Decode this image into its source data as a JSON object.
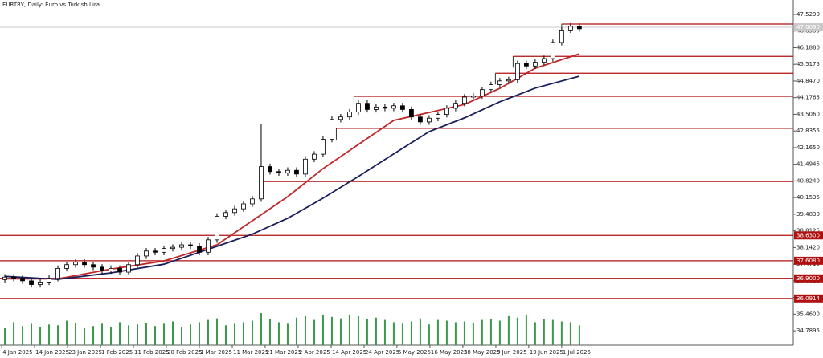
{
  "chart_data": {
    "type": "candlestick",
    "title": "EURTRY, Daily:  Euro vs Turkish Lira",
    "x": [
      0,
      1,
      2,
      3,
      4,
      5,
      6,
      7,
      8,
      9,
      10,
      11,
      12,
      13,
      14,
      15,
      16,
      17,
      18,
      19,
      20,
      21,
      22,
      23,
      24,
      25,
      26,
      27,
      28,
      29,
      30,
      31,
      32,
      33,
      34,
      35,
      36,
      37,
      38,
      39,
      40,
      41,
      42,
      43,
      44,
      45,
      46,
      47,
      48,
      49,
      50,
      51,
      52,
      53,
      54,
      55,
      56,
      57,
      58,
      59,
      60,
      61,
      62,
      63,
      64,
      65
    ],
    "open": [
      36.85,
      36.95,
      36.9,
      36.8,
      36.65,
      36.75,
      36.9,
      37.3,
      37.45,
      37.55,
      37.45,
      37.35,
      37.2,
      37.3,
      37.15,
      37.45,
      37.8,
      38.0,
      37.95,
      38.1,
      38.15,
      38.25,
      38.2,
      37.95,
      38.45,
      39.4,
      39.55,
      39.7,
      39.9,
      40.1,
      41.4,
      41.2,
      41.15,
      41.25,
      41.1,
      41.7,
      41.9,
      42.5,
      43.3,
      43.4,
      43.6,
      43.95,
      43.7,
      43.8,
      43.75,
      43.85,
      43.7,
      43.4,
      43.2,
      43.35,
      43.5,
      43.75,
      43.95,
      44.2,
      44.25,
      44.5,
      44.7,
      44.85,
      44.9,
      45.55,
      45.45,
      45.6,
      45.75,
      46.4,
      46.9,
      47.05
    ],
    "high": [
      37.07,
      37.07,
      37.02,
      36.92,
      36.87,
      37.02,
      37.42,
      37.57,
      37.67,
      37.67,
      37.57,
      37.47,
      37.42,
      37.42,
      37.57,
      37.92,
      38.12,
      38.12,
      38.22,
      38.27,
      38.37,
      38.37,
      38.32,
      38.57,
      39.52,
      39.67,
      39.82,
      40.02,
      40.22,
      43.1,
      41.52,
      41.32,
      41.37,
      41.37,
      41.82,
      42.02,
      42.62,
      43.42,
      43.52,
      43.72,
      44.07,
      44.07,
      43.92,
      43.92,
      43.97,
      43.97,
      43.82,
      43.52,
      43.47,
      43.62,
      43.87,
      44.07,
      44.32,
      44.37,
      44.62,
      44.82,
      44.97,
      45.02,
      45.67,
      45.67,
      45.72,
      45.87,
      46.52,
      47.02,
      47.17,
      47.17
    ],
    "low": [
      36.73,
      36.78,
      36.68,
      36.53,
      36.53,
      36.63,
      36.78,
      37.18,
      37.33,
      37.33,
      37.23,
      37.08,
      37.08,
      37.03,
      37.03,
      37.33,
      37.68,
      37.83,
      37.83,
      37.98,
      38.03,
      38.08,
      37.83,
      37.83,
      38.33,
      39.28,
      39.43,
      39.58,
      39.78,
      39.98,
      41.08,
      41.03,
      41.03,
      40.98,
      40.98,
      41.58,
      41.78,
      42.38,
      43.18,
      43.28,
      43.48,
      43.58,
      43.58,
      43.63,
      43.63,
      43.58,
      43.28,
      43.08,
      43.08,
      43.23,
      43.38,
      43.63,
      43.83,
      44.08,
      44.13,
      44.38,
      44.58,
      44.73,
      44.78,
      45.33,
      45.33,
      45.48,
      45.63,
      46.28,
      46.78,
      46.83
    ],
    "close": [
      36.95,
      36.9,
      36.8,
      36.65,
      36.75,
      36.9,
      37.3,
      37.45,
      37.55,
      37.45,
      37.35,
      37.2,
      37.3,
      37.15,
      37.45,
      37.8,
      38.0,
      37.95,
      38.1,
      38.15,
      38.25,
      38.2,
      37.95,
      38.45,
      39.4,
      39.55,
      39.7,
      39.9,
      40.1,
      41.4,
      41.2,
      41.15,
      41.25,
      41.1,
      41.7,
      41.9,
      42.5,
      43.3,
      43.4,
      43.6,
      43.95,
      43.7,
      43.8,
      43.75,
      43.85,
      43.7,
      43.4,
      43.2,
      43.35,
      43.5,
      43.75,
      43.95,
      44.2,
      44.25,
      44.5,
      44.7,
      44.85,
      44.9,
      45.55,
      45.45,
      45.6,
      45.75,
      46.4,
      46.9,
      47.05,
      46.95
    ],
    "volume": [
      22,
      30,
      25,
      28,
      24,
      27,
      26,
      32,
      29,
      22,
      25,
      28,
      24,
      30,
      26,
      27,
      29,
      25,
      28,
      31,
      24,
      27,
      30,
      33,
      35,
      26,
      28,
      30,
      32,
      42,
      34,
      30,
      28,
      36,
      38,
      33,
      40,
      37,
      35,
      40,
      38,
      34,
      36,
      33,
      30,
      28,
      31,
      35,
      27,
      33,
      32,
      30,
      31,
      29,
      33,
      34,
      32,
      38,
      36,
      40,
      30,
      34,
      33,
      31,
      30,
      26
    ],
    "up_color": "#ffffff",
    "down_color": "#000000",
    "volume_color": "#3a9a4a",
    "moving_averages": [
      {
        "color": "#c0282a",
        "x": [
          0,
          6,
          12,
          18,
          24,
          28,
          32,
          36,
          40,
          44,
          48,
          52,
          56,
          60,
          65
        ],
        "values": [
          36.88,
          36.88,
          37.27,
          37.6,
          38.25,
          39.22,
          40.19,
          41.32,
          42.29,
          43.26,
          43.58,
          43.9,
          44.55,
          45.36,
          45.94
        ]
      },
      {
        "color": "#1a1f5c",
        "x": [
          0,
          6,
          12,
          18,
          24,
          28,
          32,
          36,
          40,
          44,
          48,
          52,
          56,
          60,
          65
        ],
        "values": [
          36.98,
          36.86,
          37.12,
          37.47,
          38.19,
          38.68,
          39.32,
          40.13,
          41.0,
          41.91,
          42.81,
          43.36,
          44.01,
          44.56,
          45.04
        ]
      }
    ],
    "levels": [
      {
        "price": 47.14,
        "from": 63
      },
      {
        "price": 45.84,
        "from": 57.5
      },
      {
        "price": 45.16,
        "from": 55.5
      },
      {
        "price": 44.23,
        "from": 39.5
      },
      {
        "price": 42.94,
        "from": 37.5
      },
      {
        "price": 40.8,
        "from": 29.2
      },
      {
        "price": {
          "value": 38.63,
          "label": "38.6300"
        }
      },
      {
        "price": {
          "value": 37.608,
          "label": "37.6080"
        }
      },
      {
        "price": {
          "value": 36.9,
          "label": "36.9000"
        }
      },
      {
        "price": 36.0914
      }
    ],
    "level_color": "#b01010",
    "last_price": {
      "value": 47.009,
      "label": "47.0090"
    },
    "xlim": [
      -0.55,
      89.2
    ],
    "ylim": [
      34.21,
      48.11
    ],
    "xticks": [
      {
        "value": -0.36,
        "label": "4 Jan 2025"
      },
      {
        "value": 3.36,
        "label": "14 Jan 2025"
      },
      {
        "value": 7.09,
        "label": "23 Jan 2025"
      },
      {
        "value": 10.82,
        "label": "1 Feb 2025"
      },
      {
        "value": 14.55,
        "label": "11 Feb 2025"
      },
      {
        "value": 18.27,
        "label": "20 Feb 2025"
      },
      {
        "value": 22.0,
        "label": "1 Mar 2025"
      },
      {
        "value": 25.73,
        "label": "11 Mar 2025"
      },
      {
        "value": 29.45,
        "label": "21 Mar 2025"
      },
      {
        "value": 33.18,
        "label": "2 Apr 2025"
      },
      {
        "value": 36.91,
        "label": "14 Apr 2025"
      },
      {
        "value": 40.64,
        "label": "24 Apr 2025"
      },
      {
        "value": 44.36,
        "label": "6 May 2025"
      },
      {
        "value": 48.09,
        "label": "16 May 2025"
      },
      {
        "value": 51.82,
        "label": "28 May 2025"
      },
      {
        "value": 55.55,
        "label": "9 Jun 2025"
      },
      {
        "value": 59.27,
        "label": "19 Jun 2025"
      },
      {
        "value": 63.0,
        "label": "1 Jul 2025"
      }
    ],
    "yticks": [
      {
        "value": 47.529,
        "label": "47.5290"
      },
      46.8585,
      {
        "value": 46.188,
        "label": "46.1880"
      },
      45.5175,
      {
        "value": 44.847,
        "label": "44.8470"
      },
      44.1765,
      {
        "value": 43.506,
        "label": "43.5060"
      },
      42.8355,
      {
        "value": 42.165,
        "label": "42.1650"
      },
      41.4945,
      {
        "value": 40.824,
        "label": "40.8240"
      },
      40.1535,
      {
        "value": 39.483,
        "label": "39.4830"
      },
      38.8125,
      {
        "value": 38.142,
        "label": "38.1420"
      },
      37.4715,
      {
        "value": 36.801,
        "label": "36.8010"
      },
      36.1305,
      {
        "value": 35.46,
        "label": "35.4600"
      },
      34.7895
    ]
  }
}
